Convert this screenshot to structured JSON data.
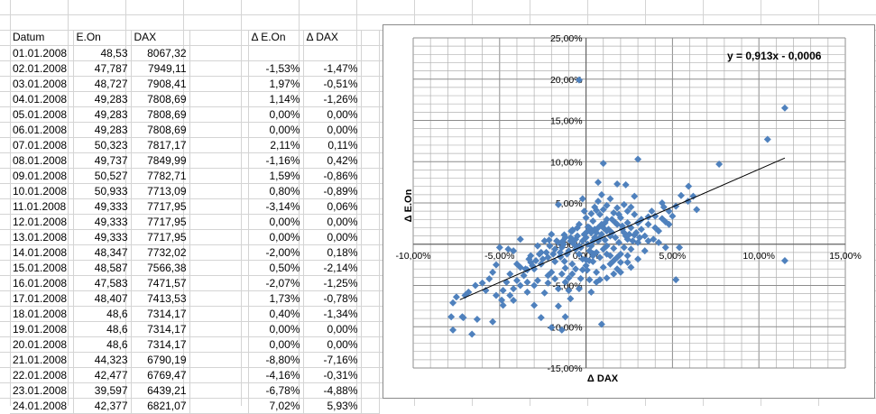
{
  "spreadsheet": {
    "headers": [
      "Datum",
      "E.On",
      "DAX",
      "",
      "Δ E.On",
      "Δ DAX"
    ],
    "rows": [
      [
        "01.01.2008",
        "48,53",
        "8067,32",
        "",
        "",
        ""
      ],
      [
        "02.01.2008",
        "47,787",
        "7949,11",
        "",
        "-1,53%",
        "-1,47%"
      ],
      [
        "03.01.2008",
        "48,727",
        "7908,41",
        "",
        "1,97%",
        "-0,51%"
      ],
      [
        "04.01.2008",
        "49,283",
        "7808,69",
        "",
        "1,14%",
        "-1,26%"
      ],
      [
        "05.01.2008",
        "49,283",
        "7808,69",
        "",
        "0,00%",
        "0,00%"
      ],
      [
        "06.01.2008",
        "49,283",
        "7808,69",
        "",
        "0,00%",
        "0,00%"
      ],
      [
        "07.01.2008",
        "50,323",
        "7817,17",
        "",
        "2,11%",
        "0,11%"
      ],
      [
        "08.01.2008",
        "49,737",
        "7849,99",
        "",
        "-1,16%",
        "0,42%"
      ],
      [
        "09.01.2008",
        "50,527",
        "7782,71",
        "",
        "1,59%",
        "-0,86%"
      ],
      [
        "10.01.2008",
        "50,933",
        "7713,09",
        "",
        "0,80%",
        "-0,89%"
      ],
      [
        "11.01.2008",
        "49,333",
        "7717,95",
        "",
        "-3,14%",
        "0,06%"
      ],
      [
        "12.01.2008",
        "49,333",
        "7717,95",
        "",
        "0,00%",
        "0,00%"
      ],
      [
        "13.01.2008",
        "49,333",
        "7717,95",
        "",
        "0,00%",
        "0,00%"
      ],
      [
        "14.01.2008",
        "48,347",
        "7732,02",
        "",
        "-2,00%",
        "0,18%"
      ],
      [
        "15.01.2008",
        "48,587",
        "7566,38",
        "",
        "0,50%",
        "-2,14%"
      ],
      [
        "16.01.2008",
        "47,583",
        "7471,57",
        "",
        "-2,07%",
        "-1,25%"
      ],
      [
        "17.01.2008",
        "48,407",
        "7413,53",
        "",
        "1,73%",
        "-0,78%"
      ],
      [
        "18.01.2008",
        "48,6",
        "7314,17",
        "",
        "0,40%",
        "-1,34%"
      ],
      [
        "19.01.2008",
        "48,6",
        "7314,17",
        "",
        "0,00%",
        "0,00%"
      ],
      [
        "20.01.2008",
        "48,6",
        "7314,17",
        "",
        "0,00%",
        "0,00%"
      ],
      [
        "21.01.2008",
        "44,323",
        "6790,19",
        "",
        "-8,80%",
        "-7,16%"
      ],
      [
        "22.01.2008",
        "42,477",
        "6769,47",
        "",
        "-4,16%",
        "-0,31%"
      ],
      [
        "23.01.2008",
        "39,597",
        "6439,21",
        "",
        "-6,78%",
        "-4,88%"
      ],
      [
        "24.01.2008",
        "42,377",
        "6821,07",
        "",
        "7,02%",
        "5,93%"
      ]
    ]
  },
  "chart_data": {
    "type": "scatter",
    "title": "",
    "xlabel": "Δ DAX",
    "ylabel": "Δ E.On",
    "xlim": [
      -0.1,
      0.15
    ],
    "ylim": [
      -0.15,
      0.25
    ],
    "x_tick_labels": [
      "-10,00%",
      "-5,00%",
      "0,00%",
      "5,00%",
      "10,00%",
      "15,00%"
    ],
    "y_tick_labels": [
      "25,00%",
      "20,00%",
      "15,00%",
      "10,00%",
      "5,00%",
      "0,00%",
      "-5,00%",
      "-10,00%",
      "-15,00%"
    ],
    "x_ticks": [
      -0.1,
      -0.05,
      0.0,
      0.05,
      0.1,
      0.15
    ],
    "y_ticks": [
      0.25,
      0.2,
      0.15,
      0.1,
      0.05,
      0.0,
      -0.05,
      -0.1,
      -0.15
    ],
    "trendline": {
      "equation": "y = 0,913x - 0,0006",
      "slope": 0.913,
      "intercept": -0.0006,
      "x_range": [
        -0.073,
        0.115
      ]
    },
    "marker_color": "#4f81bd",
    "points": [
      [
        -0.0147,
        -0.0153
      ],
      [
        -0.0051,
        0.0197
      ],
      [
        -0.0126,
        0.0114
      ],
      [
        0.0011,
        0.0211
      ],
      [
        0.0042,
        -0.0116
      ],
      [
        -0.0086,
        0.0159
      ],
      [
        -0.0089,
        0.008
      ],
      [
        0.0006,
        -0.0314
      ],
      [
        0.0018,
        -0.02
      ],
      [
        -0.0214,
        0.005
      ],
      [
        -0.0125,
        -0.0207
      ],
      [
        -0.0078,
        0.0173
      ],
      [
        -0.0134,
        0.004
      ],
      [
        -0.0716,
        -0.088
      ],
      [
        -0.0031,
        -0.0416
      ],
      [
        -0.0488,
        -0.0678
      ],
      [
        0.0593,
        0.0702
      ],
      [
        -0.004,
        0.199
      ],
      [
        0.115,
        0.165
      ],
      [
        0.105,
        0.127
      ],
      [
        0.077,
        0.097
      ],
      [
        0.115,
        -0.02
      ],
      [
        0.03,
        0.103
      ],
      [
        0.01,
        0.098
      ],
      [
        0.059,
        0.052
      ],
      [
        0.055,
        0.059
      ],
      [
        0.062,
        0.058
      ],
      [
        0.052,
        -0.043
      ],
      [
        0.045,
        0.045
      ],
      [
        0.046,
        0.027
      ],
      [
        0.039,
        0.006
      ],
      [
        0.036,
        0.033
      ],
      [
        0.018,
        0.073
      ],
      [
        0.023,
        0.072
      ],
      [
        0.028,
        0.058
      ],
      [
        0.026,
        0.045
      ],
      [
        0.024,
        0.04
      ],
      [
        0.009,
        0.06
      ],
      [
        0.007,
        0.075
      ],
      [
        0.006,
        0.041
      ],
      [
        0.012,
        0.047
      ],
      [
        -0.002,
        0.055
      ],
      [
        -0.016,
        0.048
      ],
      [
        -0.038,
        0.006
      ],
      [
        -0.042,
        -0.008
      ],
      [
        -0.045,
        -0.006
      ],
      [
        -0.05,
        -0.004
      ],
      [
        -0.052,
        -0.025
      ],
      [
        -0.054,
        -0.034
      ],
      [
        -0.058,
        -0.056
      ],
      [
        -0.064,
        -0.05
      ],
      [
        -0.07,
        -0.062
      ],
      [
        -0.075,
        -0.064
      ],
      [
        -0.077,
        -0.071
      ],
      [
        -0.078,
        -0.088
      ],
      [
        -0.077,
        -0.104
      ],
      [
        -0.071,
        -0.089
      ],
      [
        -0.063,
        -0.091
      ],
      [
        -0.066,
        -0.109
      ],
      [
        -0.054,
        -0.094
      ],
      [
        -0.048,
        -0.074
      ],
      [
        -0.042,
        -0.068
      ],
      [
        -0.03,
        -0.074
      ],
      [
        -0.026,
        -0.089
      ],
      [
        -0.02,
        -0.101
      ],
      [
        -0.014,
        -0.104
      ],
      [
        -0.012,
        -0.088
      ],
      [
        -0.016,
        -0.075
      ],
      [
        -0.009,
        -0.066
      ],
      [
        0.009,
        -0.097
      ],
      [
        0.003,
        -0.058
      ],
      [
        -0.03,
        -0.05
      ],
      [
        -0.034,
        -0.031
      ],
      [
        -0.032,
        -0.022
      ],
      [
        -0.026,
        -0.01
      ],
      [
        -0.022,
        -0.047
      ],
      [
        -0.02,
        -0.034
      ],
      [
        -0.018,
        -0.021
      ],
      [
        -0.015,
        -0.015
      ],
      [
        -0.012,
        -0.029
      ],
      [
        -0.01,
        -0.041
      ],
      [
        -0.008,
        -0.024
      ],
      [
        -0.006,
        -0.006
      ],
      [
        -0.004,
        -0.012
      ],
      [
        -0.002,
        -0.031
      ],
      [
        0.0,
        -0.019
      ],
      [
        0.002,
        -0.008
      ],
      [
        0.004,
        -0.021
      ],
      [
        0.006,
        -0.034
      ],
      [
        0.008,
        -0.043
      ],
      [
        0.01,
        -0.028
      ],
      [
        0.012,
        -0.012
      ],
      [
        0.014,
        -0.024
      ],
      [
        0.016,
        -0.005
      ],
      [
        0.018,
        -0.016
      ],
      [
        0.02,
        -0.022
      ],
      [
        0.022,
        -0.004
      ],
      [
        0.024,
        0.006
      ],
      [
        0.026,
        -0.006
      ],
      [
        0.028,
        0.011
      ],
      [
        0.03,
        0.002
      ],
      [
        0.032,
        0.018
      ],
      [
        0.034,
        0.01
      ],
      [
        0.036,
        0.024
      ],
      [
        0.04,
        0.02
      ],
      [
        0.042,
        0.016
      ],
      [
        0.044,
        0.031
      ],
      [
        0.048,
        0.024
      ],
      [
        0.05,
        0.034
      ],
      [
        0.034,
        -0.008
      ],
      [
        0.03,
        -0.018
      ],
      [
        0.024,
        -0.022
      ],
      [
        0.02,
        -0.034
      ],
      [
        0.016,
        -0.036
      ],
      [
        0.012,
        -0.041
      ],
      [
        0.006,
        -0.046
      ],
      [
        0.002,
        -0.043
      ],
      [
        -0.004,
        -0.054
      ],
      [
        -0.01,
        -0.056
      ],
      [
        -0.016,
        -0.054
      ],
      [
        -0.024,
        -0.059
      ],
      [
        -0.034,
        -0.058
      ],
      [
        -0.04,
        -0.044
      ],
      [
        -0.044,
        -0.036
      ],
      [
        -0.038,
        -0.028
      ],
      [
        -0.032,
        -0.014
      ],
      [
        -0.028,
        -0.002
      ],
      [
        -0.024,
        0.004
      ],
      [
        -0.02,
        0.012
      ],
      [
        -0.016,
        0.002
      ],
      [
        -0.012,
        0.008
      ],
      [
        -0.008,
        0.016
      ],
      [
        -0.004,
        0.024
      ],
      [
        0.0,
        0.032
      ],
      [
        0.004,
        0.028
      ],
      [
        0.008,
        0.036
      ],
      [
        0.012,
        0.03
      ],
      [
        0.016,
        0.038
      ],
      [
        0.02,
        0.032
      ],
      [
        0.024,
        0.026
      ],
      [
        0.028,
        0.036
      ],
      [
        0.012,
        0.016
      ],
      [
        0.008,
        0.008
      ],
      [
        0.004,
        0.004
      ],
      [
        0.0,
        0.008
      ],
      [
        -0.004,
        -0.002
      ],
      [
        0.006,
        0.014
      ],
      [
        0.01,
        0.02
      ],
      [
        0.014,
        0.01
      ],
      [
        0.018,
        0.024
      ],
      [
        0.022,
        0.014
      ],
      [
        0.002,
        0.02
      ],
      [
        -0.006,
        0.006
      ],
      [
        -0.01,
        -0.008
      ],
      [
        -0.014,
        -0.004
      ],
      [
        -0.018,
        -0.006
      ],
      [
        -0.022,
        -0.016
      ],
      [
        -0.026,
        -0.024
      ],
      [
        -0.03,
        -0.03
      ],
      [
        -0.036,
        -0.038
      ],
      [
        -0.04,
        -0.024
      ],
      [
        -0.046,
        -0.046
      ],
      [
        -0.056,
        -0.042
      ],
      [
        -0.06,
        -0.047
      ],
      [
        -0.068,
        -0.058
      ],
      [
        0.026,
        0.02
      ],
      [
        0.03,
        0.026
      ],
      [
        0.032,
        0.03
      ],
      [
        0.036,
        0.004
      ],
      [
        0.038,
        0.04
      ],
      [
        0.04,
        0.034
      ],
      [
        0.042,
        0.002
      ],
      [
        0.046,
        -0.004
      ],
      [
        0.054,
        -0.004
      ],
      [
        0.064,
        0.042
      ],
      [
        0.044,
        0.05
      ],
      [
        0.048,
        0.04
      ],
      [
        0.052,
        0.046
      ],
      [
        -0.001,
        0.012
      ],
      [
        0.001,
        0.0
      ],
      [
        0.003,
        -0.002
      ],
      [
        0.005,
        0.008
      ],
      [
        0.007,
        0.004
      ],
      [
        0.009,
        0.012
      ],
      [
        0.011,
        0.005
      ],
      [
        0.013,
        0.018
      ],
      [
        0.015,
        0.014
      ],
      [
        0.017,
        0.008
      ],
      [
        0.019,
        0.002
      ],
      [
        0.021,
        0.018
      ],
      [
        0.023,
        0.01
      ],
      [
        0.025,
        0.012
      ],
      [
        0.027,
        0.004
      ],
      [
        0.029,
        0.014
      ],
      [
        0.031,
        0.008
      ],
      [
        -0.002,
        0.004
      ],
      [
        -0.003,
        -0.004
      ],
      [
        -0.005,
        0.01
      ],
      [
        -0.007,
        0.0
      ],
      [
        -0.009,
        0.004
      ],
      [
        -0.011,
        -0.012
      ],
      [
        -0.013,
        0.0
      ],
      [
        -0.015,
        -0.01
      ],
      [
        -0.017,
        0.004
      ],
      [
        -0.019,
        -0.012
      ],
      [
        -0.021,
        -0.002
      ],
      [
        -0.023,
        -0.01
      ],
      [
        -0.025,
        -0.018
      ],
      [
        -0.027,
        -0.012
      ],
      [
        -0.029,
        -0.02
      ],
      [
        -0.031,
        -0.026
      ],
      [
        -0.033,
        -0.018
      ],
      [
        -0.035,
        -0.03
      ],
      [
        0.008,
        -0.016
      ],
      [
        0.01,
        -0.006
      ],
      [
        0.012,
        -0.002
      ],
      [
        0.014,
        -0.014
      ],
      [
        0.016,
        -0.02
      ],
      [
        0.018,
        -0.03
      ],
      [
        0.02,
        -0.012
      ],
      [
        0.024,
        -0.014
      ],
      [
        0.026,
        -0.028
      ],
      [
        0.005,
        0.045
      ],
      [
        0.007,
        0.052
      ],
      [
        0.014,
        0.055
      ],
      [
        0.018,
        0.044
      ],
      [
        0.022,
        0.048
      ],
      [
        0.003,
        0.037
      ],
      [
        -0.001,
        0.04
      ],
      [
        0.01,
        0.042
      ],
      [
        0.015,
        0.03
      ],
      [
        0.017,
        0.026
      ],
      [
        0.019,
        0.036
      ],
      [
        0.021,
        0.022
      ],
      [
        0.011,
        0.026
      ],
      [
        0.009,
        0.024
      ],
      [
        0.007,
        0.02
      ],
      [
        0.005,
        0.018
      ],
      [
        0.003,
        0.014
      ],
      [
        0.001,
        0.016
      ],
      [
        0.006,
        -0.01
      ],
      [
        0.004,
        -0.014
      ],
      [
        0.0,
        -0.026
      ],
      [
        -0.002,
        -0.018
      ],
      [
        -0.006,
        -0.03
      ],
      [
        -0.008,
        -0.036
      ],
      [
        -0.012,
        -0.046
      ],
      [
        -0.014,
        -0.036
      ],
      [
        -0.018,
        -0.042
      ],
      [
        -0.022,
        -0.038
      ],
      [
        -0.028,
        -0.044
      ],
      [
        -0.034,
        -0.046
      ],
      [
        -0.038,
        -0.05
      ],
      [
        -0.042,
        -0.054
      ],
      [
        -0.048,
        -0.056
      ],
      [
        -0.052,
        -0.062
      ],
      [
        -0.044,
        -0.062
      ]
    ]
  }
}
